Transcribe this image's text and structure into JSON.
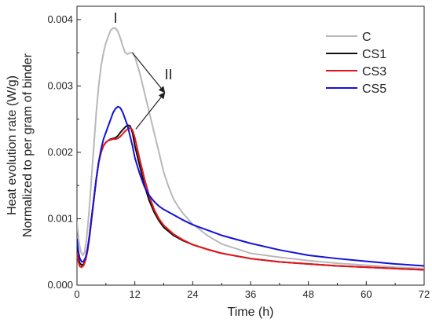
{
  "chart_data": {
    "type": "line",
    "xlabel": "Time (h)",
    "ylabel_lines": [
      "Heat evolution rate (W/g)",
      "Normalized to per gram of binder"
    ],
    "xlim": [
      0,
      72
    ],
    "ylim": [
      0,
      0.0042
    ],
    "xticks": [
      0,
      12,
      24,
      36,
      48,
      60,
      72
    ],
    "xtick_labels": [
      "0",
      "12",
      "24",
      "36",
      "48",
      "60",
      "72"
    ],
    "yticks": [
      0,
      0.001,
      0.002,
      0.003,
      0.004
    ],
    "ytick_labels": [
      "0.000",
      "0.001",
      "0.002",
      "0.003",
      "0.004"
    ],
    "grid": false,
    "legend_position": "top-right",
    "annotations": [
      {
        "text": "I",
        "x": 8,
        "y": 0.00395
      },
      {
        "text": "II",
        "x": 19,
        "y": 0.0031
      }
    ],
    "arrows": [
      {
        "from": [
          11.5,
          0.0035
        ],
        "to": [
          18.2,
          0.0029
        ]
      },
      {
        "from": [
          12.2,
          0.00235
        ],
        "to": [
          18.2,
          0.0029
        ]
      }
    ],
    "series": [
      {
        "name": "C",
        "color": "#b8b8b8",
        "x": [
          0,
          0.4,
          0.8,
          1.2,
          1.6,
          2,
          2.5,
          3,
          3.5,
          4,
          4.5,
          5,
          5.5,
          6,
          6.5,
          7,
          7.5,
          8,
          8.5,
          9,
          9.5,
          10,
          10.5,
          11,
          11.5,
          12,
          13,
          14,
          15,
          16,
          17,
          18,
          19,
          20,
          21,
          22,
          24,
          27,
          30,
          36,
          42,
          48,
          54,
          60,
          66,
          72
        ],
        "y": [
          0.00095,
          0.00065,
          0.0005,
          0.00045,
          0.0005,
          0.0007,
          0.0011,
          0.0016,
          0.0021,
          0.0026,
          0.003,
          0.0033,
          0.0035,
          0.00365,
          0.00375,
          0.00384,
          0.00387,
          0.00387,
          0.00382,
          0.00372,
          0.0036,
          0.0035,
          0.00348,
          0.0035,
          0.0035,
          0.00344,
          0.0032,
          0.0029,
          0.0026,
          0.0023,
          0.002,
          0.0017,
          0.00148,
          0.0013,
          0.00118,
          0.00108,
          0.00092,
          0.00075,
          0.00062,
          0.00048,
          0.00042,
          0.00037,
          0.00033,
          0.0003,
          0.00027,
          0.00025
        ]
      },
      {
        "name": "CS1",
        "color": "#111111",
        "x": [
          0,
          0.3,
          0.6,
          1,
          1.4,
          1.8,
          2.2,
          2.6,
          3,
          3.5,
          4,
          4.5,
          5,
          5.5,
          6,
          6.5,
          7,
          7.5,
          8,
          8.5,
          9,
          9.5,
          10,
          10.5,
          11,
          11.5,
          12,
          13,
          14,
          15,
          16,
          17,
          18,
          20,
          22,
          24,
          27,
          30,
          36,
          42,
          48,
          54,
          60,
          66,
          72
        ],
        "y": [
          0.00055,
          0.0004,
          0.00033,
          0.0003,
          0.00032,
          0.0004,
          0.00055,
          0.00075,
          0.001,
          0.0013,
          0.0016,
          0.00185,
          0.002,
          0.0021,
          0.00215,
          0.00218,
          0.0022,
          0.00221,
          0.00222,
          0.00225,
          0.0023,
          0.00234,
          0.00238,
          0.00241,
          0.0024,
          0.0023,
          0.0021,
          0.0018,
          0.0015,
          0.00127,
          0.0011,
          0.00097,
          0.00087,
          0.00075,
          0.00067,
          0.00061,
          0.00054,
          0.00048,
          0.0004,
          0.00035,
          0.00032,
          0.00029,
          0.00027,
          0.00025,
          0.00023
        ]
      },
      {
        "name": "CS3",
        "color": "#e8141b",
        "x": [
          0,
          0.3,
          0.6,
          1,
          1.4,
          1.8,
          2.2,
          2.6,
          3,
          3.5,
          4,
          4.5,
          5,
          5.5,
          6,
          6.5,
          7,
          7.5,
          8,
          8.5,
          9,
          9.5,
          10,
          10.5,
          11,
          11.5,
          12,
          13,
          14,
          15,
          16,
          17,
          18,
          20,
          22,
          24,
          27,
          30,
          36,
          42,
          48,
          54,
          60,
          66,
          72
        ],
        "y": [
          0.0005,
          0.00035,
          0.00028,
          0.00027,
          0.0003,
          0.00038,
          0.00052,
          0.00072,
          0.00097,
          0.00128,
          0.0016,
          0.00185,
          0.002,
          0.0021,
          0.00215,
          0.00218,
          0.00219,
          0.0022,
          0.0022,
          0.00221,
          0.00224,
          0.00228,
          0.00232,
          0.00235,
          0.00237,
          0.00234,
          0.00222,
          0.0019,
          0.0016,
          0.00134,
          0.00114,
          0.001,
          0.0009,
          0.00077,
          0.00068,
          0.00061,
          0.00054,
          0.00048,
          0.0004,
          0.00035,
          0.00032,
          0.00029,
          0.00027,
          0.00025,
          0.00023
        ]
      },
      {
        "name": "CS5",
        "color": "#1212d9",
        "x": [
          0,
          0.3,
          0.6,
          1,
          1.4,
          1.8,
          2.2,
          2.6,
          3,
          3.5,
          4,
          4.5,
          5,
          5.5,
          6,
          6.5,
          7,
          7.5,
          8,
          8.5,
          9,
          9.5,
          10,
          10.5,
          11,
          11.5,
          12,
          13,
          14,
          15,
          16,
          17,
          18,
          20,
          22,
          24,
          27,
          30,
          36,
          42,
          48,
          54,
          60,
          66,
          72
        ],
        "y": [
          0.0007,
          0.0005,
          0.0004,
          0.00035,
          0.00036,
          0.00042,
          0.00055,
          0.00075,
          0.001,
          0.0013,
          0.0016,
          0.00185,
          0.00205,
          0.0022,
          0.0023,
          0.0024,
          0.0025,
          0.0026,
          0.00266,
          0.00269,
          0.00267,
          0.0026,
          0.0025,
          0.0024,
          0.00225,
          0.0021,
          0.00192,
          0.00168,
          0.00148,
          0.00135,
          0.00126,
          0.00119,
          0.00114,
          0.00106,
          0.00098,
          0.00091,
          0.00083,
          0.00075,
          0.00063,
          0.00053,
          0.00045,
          0.0004,
          0.00036,
          0.00032,
          0.00029
        ]
      }
    ]
  }
}
